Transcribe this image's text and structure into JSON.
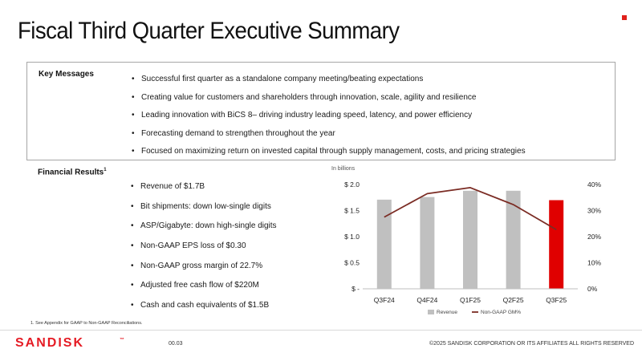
{
  "title": "Fiscal Third Quarter Executive Summary",
  "key_messages": {
    "label": "Key Messages",
    "items": [
      "Successful first quarter as a standalone company meeting/beating expectations",
      "Creating value for customers and shareholders through innovation, scale, agility and resilience",
      "Leading innovation with BiCS 8– driving industry leading speed, latency, and power efficiency",
      "Forecasting demand to strengthen throughout the year",
      "Focused on maximizing return on invested capital through supply management, costs, and pricing strategies"
    ]
  },
  "financial_results": {
    "label": "Financial Results",
    "footnote_ref": "1",
    "items": [
      "Revenue of $1.7B",
      "Bit shipments: down low-single digits",
      "ASP/Gigabyte: down high-single digits",
      "Non-GAAP EPS loss of $0.30",
      "Non-GAAP gross margin of 22.7%",
      "Adjusted free cash flow of $220M",
      "Cash and cash equivalents of $1.5B"
    ]
  },
  "chart_data": {
    "type": "bar",
    "subtitle": "In billions",
    "categories": [
      "Q3F24",
      "Q4F24",
      "Q1F25",
      "Q2F25",
      "Q3F25"
    ],
    "series": [
      {
        "name": "Revenue",
        "kind": "bar",
        "axis": "left",
        "values": [
          1.71,
          1.76,
          1.88,
          1.88,
          1.7
        ],
        "color": "#c0c0c0",
        "highlight_color": "#e00000",
        "highlight_index": 4
      },
      {
        "name": "Non-GAAP GM%",
        "kind": "line",
        "axis": "right",
        "values": [
          27.5,
          36.5,
          38.8,
          32.3,
          22.7
        ],
        "color": "#7b2c24"
      }
    ],
    "y_left": {
      "range": [
        0,
        2.0
      ],
      "ticks": [
        0,
        0.5,
        1.0,
        1.5,
        2.0
      ],
      "tick_labels": [
        "$ -",
        "$ 0.5",
        "$ 1.0",
        "$ 1.5",
        "$ 2.0"
      ]
    },
    "y_right": {
      "range": [
        0,
        40
      ],
      "ticks": [
        0,
        10,
        20,
        30,
        40
      ],
      "tick_labels": [
        "0%",
        "10%",
        "20%",
        "30%",
        "40%"
      ]
    },
    "grid": false,
    "legend_position": "bottom"
  },
  "footnote": "1.    See Appendix for GAAP to Non-GAAP Reconciliations.",
  "footer": {
    "logo_text": "SANDISK",
    "trademark": "™",
    "page_number": "00.03",
    "copyright": "©2025 SANDISK CORPORATION OR ITS AFFILIATES ALL RIGHTS RESERVED"
  },
  "colors": {
    "accent_red": "#e0201b",
    "logo_red": "#e51b24",
    "box_border": "#a6a6a6"
  }
}
